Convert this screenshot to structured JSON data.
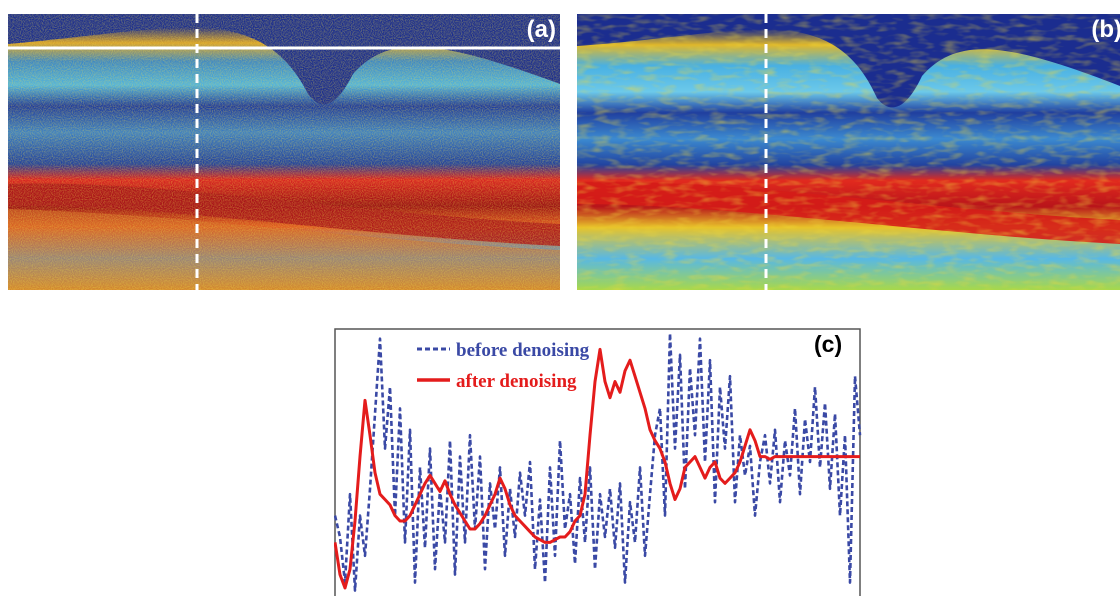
{
  "panels": {
    "a": {
      "label": "(a)"
    },
    "b": {
      "label": "(b)"
    },
    "c": {
      "label": "(c)"
    }
  },
  "colors": {
    "background_blue": "#1a2a8c",
    "layer_cyan": "#4fb3e0",
    "layer_yellow": "#d8d23a",
    "layer_red": "#c81e1e",
    "dashed_marker": "#ffffff",
    "series_before": "#3a49a5",
    "series_after": "#e41c1c"
  },
  "chart_data": {
    "type": "line",
    "title": "",
    "xlabel": "",
    "ylabel": "",
    "grid": false,
    "legend_placement": "top-left",
    "x": [
      0,
      5,
      10,
      15,
      20,
      25,
      30,
      35,
      40,
      45,
      50,
      55,
      60,
      65,
      70,
      75,
      80,
      85,
      90,
      95,
      100,
      105,
      110,
      115,
      120,
      125,
      130,
      135,
      140,
      145,
      150,
      155,
      160,
      165,
      170,
      175,
      180,
      185,
      190,
      195,
      200,
      205,
      210,
      215,
      220,
      225,
      230,
      235,
      240,
      245,
      250,
      255,
      260,
      265,
      270,
      275,
      280,
      285,
      290,
      295,
      300,
      305,
      310,
      315,
      320,
      325,
      330,
      335,
      340,
      345,
      350,
      355,
      360,
      365,
      370,
      375,
      380,
      385,
      390,
      395,
      400,
      405,
      410,
      415,
      420,
      425,
      430,
      435,
      440,
      445,
      450,
      455,
      460,
      465,
      470,
      475,
      480,
      485,
      490,
      495,
      500,
      505,
      510,
      515,
      520,
      525
    ],
    "ylim": [
      0,
      1
    ],
    "series": [
      {
        "name": "before denoising",
        "style": "dashed",
        "values": [
          0.3,
          0.22,
          0.05,
          0.38,
          0.02,
          0.3,
          0.15,
          0.4,
          0.68,
          0.96,
          0.55,
          0.78,
          0.3,
          0.7,
          0.2,
          0.62,
          0.05,
          0.48,
          0.18,
          0.55,
          0.1,
          0.4,
          0.2,
          0.58,
          0.08,
          0.52,
          0.2,
          0.6,
          0.25,
          0.52,
          0.1,
          0.42,
          0.25,
          0.48,
          0.15,
          0.4,
          0.22,
          0.46,
          0.3,
          0.5,
          0.1,
          0.36,
          0.05,
          0.48,
          0.15,
          0.58,
          0.25,
          0.38,
          0.12,
          0.44,
          0.2,
          0.48,
          0.1,
          0.38,
          0.22,
          0.4,
          0.18,
          0.42,
          0.05,
          0.35,
          0.2,
          0.48,
          0.15,
          0.38,
          0.6,
          0.7,
          0.3,
          0.98,
          0.55,
          0.9,
          0.4,
          0.85,
          0.6,
          0.96,
          0.5,
          0.88,
          0.35,
          0.78,
          0.55,
          0.82,
          0.35,
          0.6,
          0.45,
          0.56,
          0.3,
          0.5,
          0.6,
          0.42,
          0.62,
          0.35,
          0.58,
          0.45,
          0.7,
          0.38,
          0.66,
          0.5,
          0.78,
          0.48,
          0.72,
          0.4,
          0.68,
          0.3,
          0.6,
          0.05,
          0.82,
          0.6
        ]
      },
      {
        "name": "after denoising",
        "style": "solid",
        "values": [
          0.2,
          0.08,
          0.03,
          0.1,
          0.28,
          0.52,
          0.73,
          0.6,
          0.46,
          0.38,
          0.36,
          0.34,
          0.3,
          0.28,
          0.28,
          0.3,
          0.34,
          0.38,
          0.42,
          0.45,
          0.42,
          0.39,
          0.43,
          0.38,
          0.34,
          0.31,
          0.28,
          0.25,
          0.25,
          0.27,
          0.3,
          0.34,
          0.38,
          0.44,
          0.4,
          0.34,
          0.3,
          0.28,
          0.26,
          0.24,
          0.22,
          0.21,
          0.2,
          0.2,
          0.21,
          0.22,
          0.22,
          0.24,
          0.28,
          0.3,
          0.38,
          0.6,
          0.8,
          0.92,
          0.8,
          0.74,
          0.8,
          0.76,
          0.84,
          0.88,
          0.82,
          0.76,
          0.7,
          0.62,
          0.58,
          0.55,
          0.5,
          0.42,
          0.36,
          0.4,
          0.48,
          0.5,
          0.52,
          0.48,
          0.44,
          0.48,
          0.5,
          0.44,
          0.42,
          0.44,
          0.46,
          0.5,
          0.56,
          0.62,
          0.58,
          0.52,
          0.52,
          0.51,
          0.52,
          0.52,
          0.52,
          0.52,
          0.52,
          0.52,
          0.52,
          0.52,
          0.52,
          0.52,
          0.52,
          0.52,
          0.52,
          0.52,
          0.52,
          0.52,
          0.52,
          0.52
        ]
      }
    ]
  }
}
